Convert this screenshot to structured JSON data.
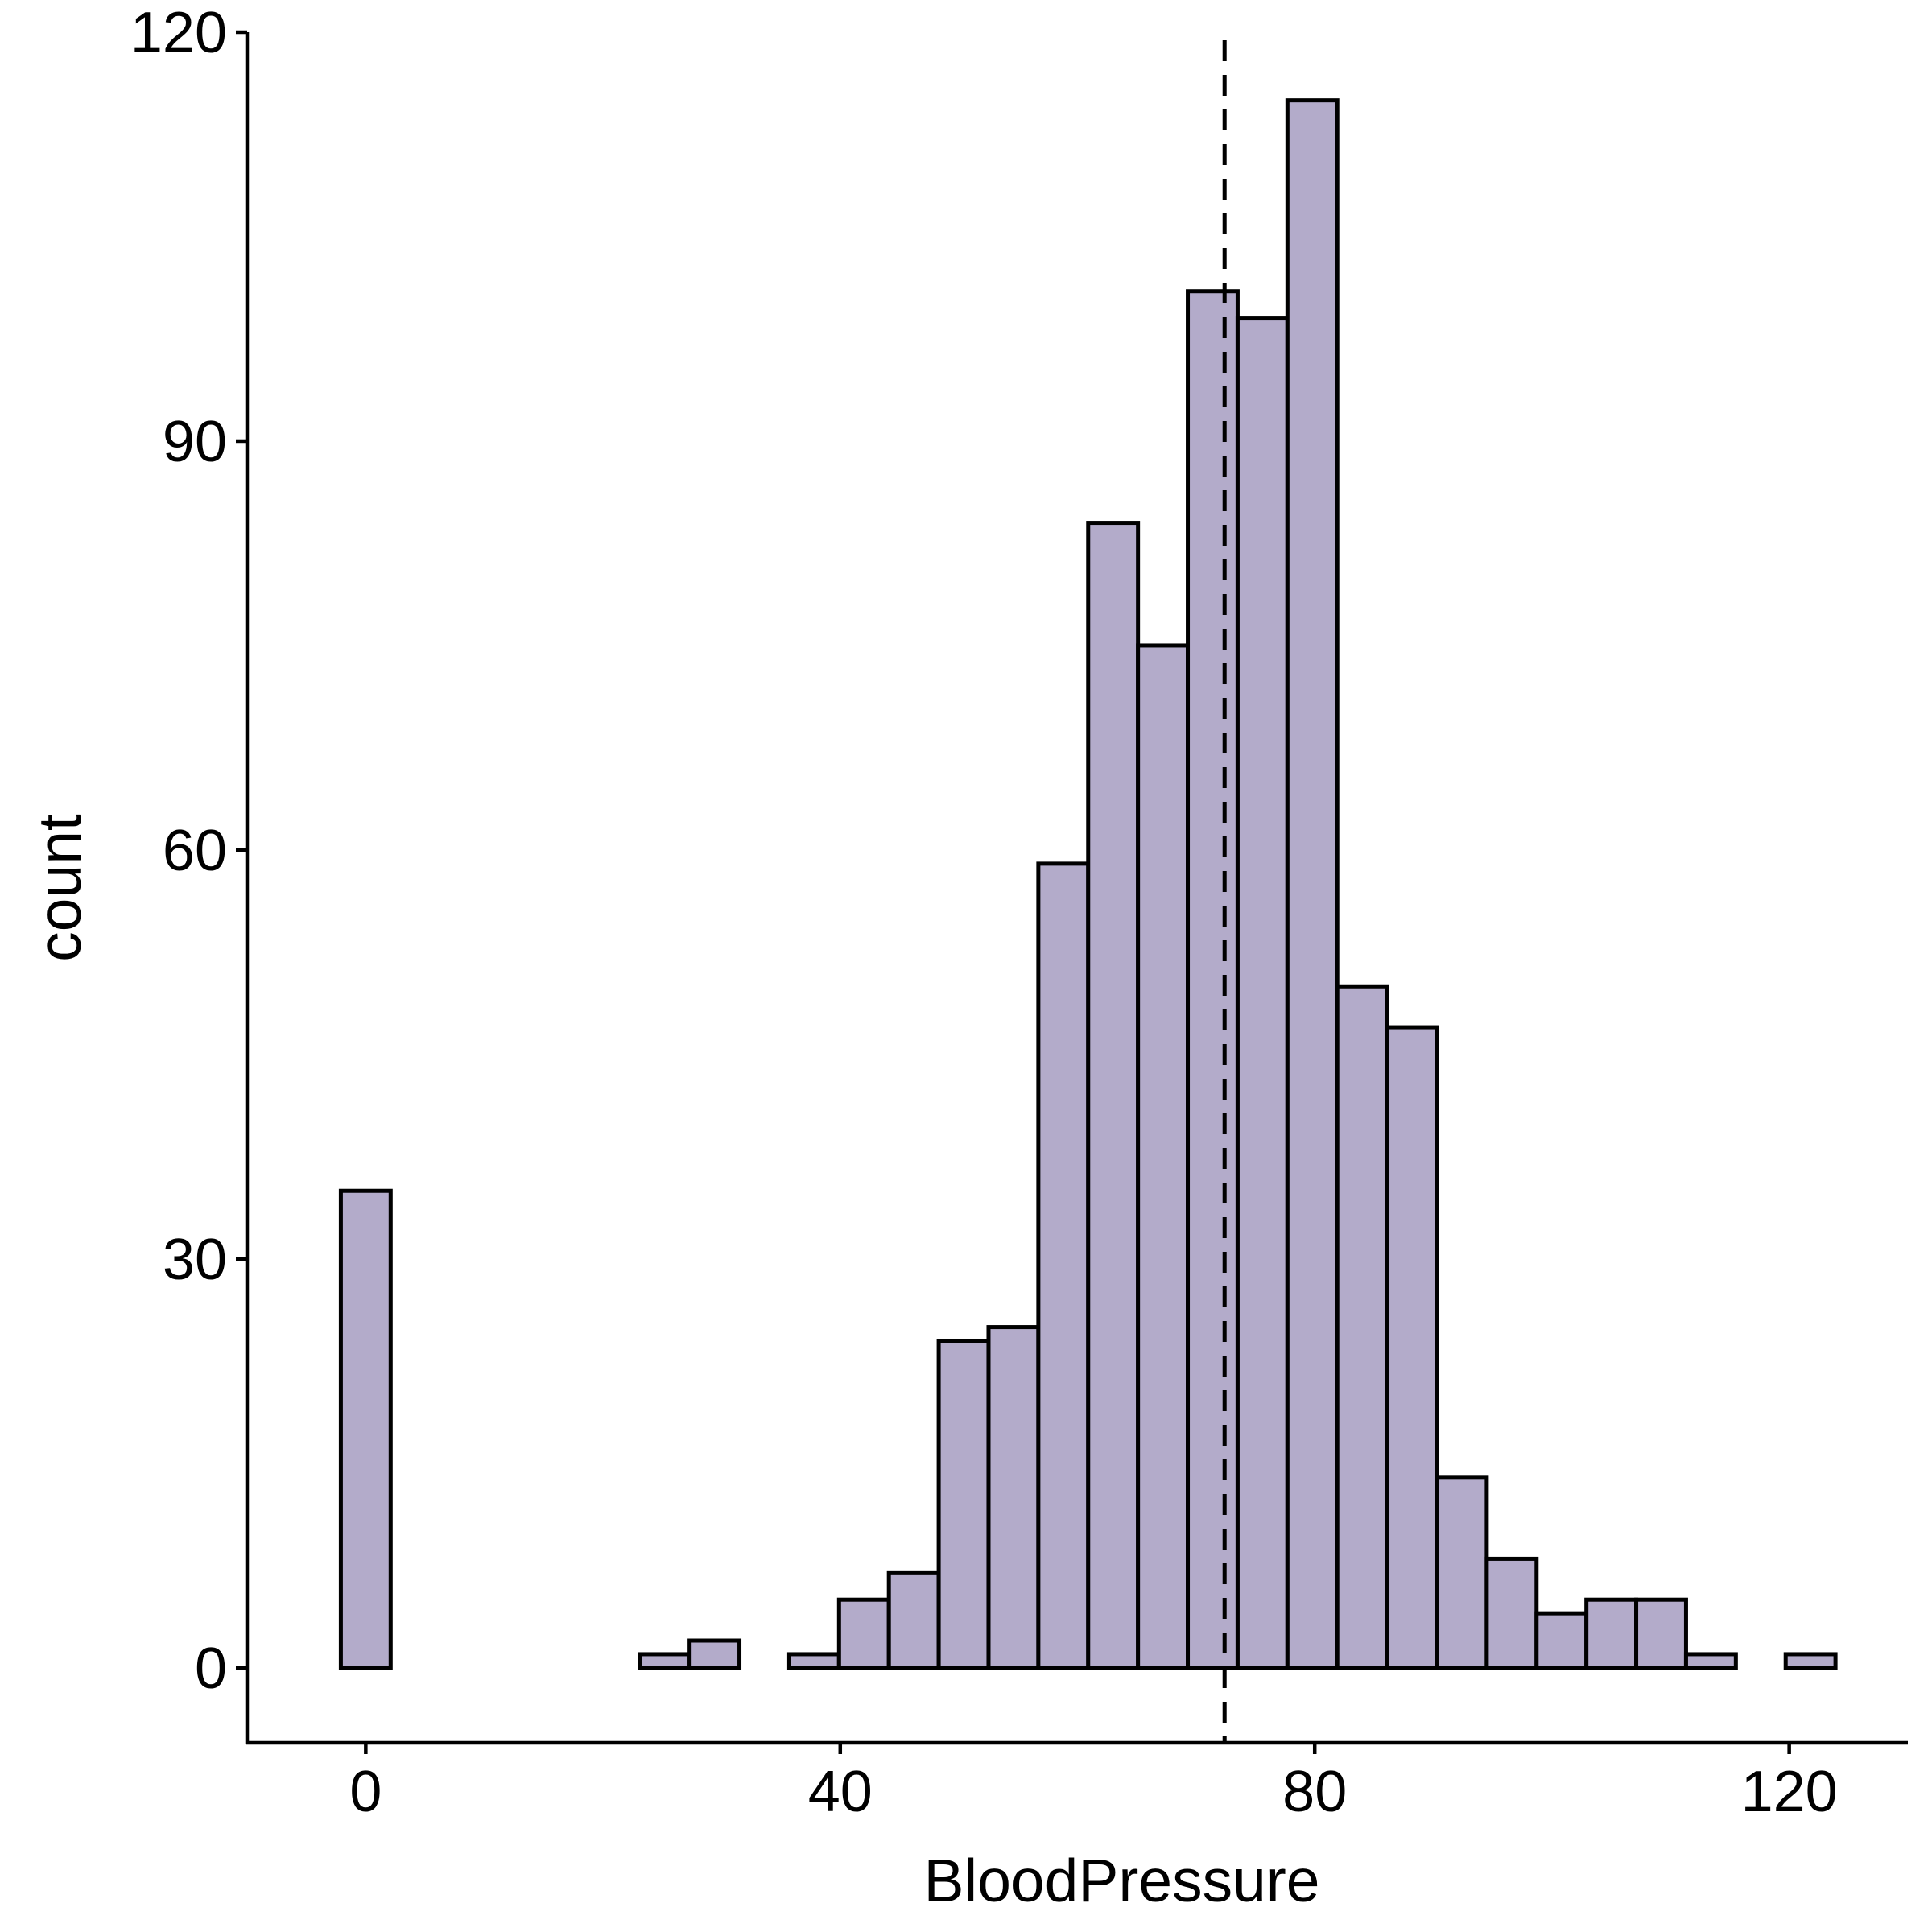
{
  "chart_data": {
    "type": "bar",
    "subtype": "histogram",
    "xlabel": "BloodPressure",
    "ylabel": "count",
    "xlim": [
      -10,
      130
    ],
    "ylim": [
      -5.5,
      120
    ],
    "x_ticks": [
      0,
      40,
      80,
      120
    ],
    "y_ticks": [
      0,
      30,
      60,
      90,
      120
    ],
    "bin_width": 4.2,
    "bin_centers": [
      0,
      4.2,
      8.4,
      12.6,
      16.8,
      21,
      25.2,
      29.4,
      33.6,
      37.8,
      42,
      46.2,
      50.4,
      54.6,
      58.8,
      63,
      67.2,
      71.4,
      75.6,
      79.8,
      84,
      88.2,
      92.4,
      96.6,
      100.8,
      105,
      109.2,
      113.4,
      117.6,
      121.8
    ],
    "values": [
      35,
      0,
      0,
      0,
      0,
      0,
      1,
      2,
      0,
      1,
      5,
      7,
      24,
      25,
      59,
      84,
      75,
      101,
      99,
      115,
      50,
      47,
      14,
      8,
      4,
      5,
      5,
      1,
      0,
      1
    ],
    "mean_line": {
      "x": 72.4,
      "style": "dashed",
      "color": "#000000"
    },
    "fill_color": "#B3ABCA",
    "edge_color": "#000000",
    "grid": false
  }
}
